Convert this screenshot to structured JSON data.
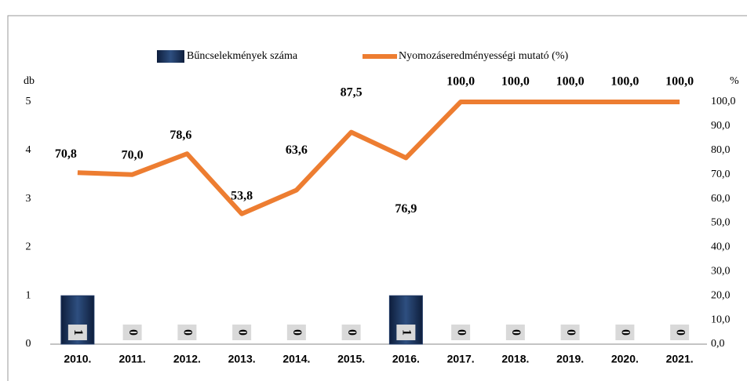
{
  "chart_data": {
    "type": "bar-line",
    "categories": [
      "2010.",
      "2011.",
      "2012.",
      "2013.",
      "2014.",
      "2015.",
      "2016.",
      "2017.",
      "2018.",
      "2019.",
      "2020.",
      "2021."
    ],
    "ylabel": "db",
    "y2label": "%",
    "ylim": [
      0,
      5
    ],
    "yticks": [
      0,
      1,
      2,
      3,
      4,
      5
    ],
    "y2lim": [
      0,
      100
    ],
    "y2ticks": [
      {
        "value": 0,
        "label": "0,0"
      },
      {
        "value": 10,
        "label": "10,0"
      },
      {
        "value": 20,
        "label": "20,0"
      },
      {
        "value": 30,
        "label": "30,0"
      },
      {
        "value": 40,
        "label": "40,0"
      },
      {
        "value": 50,
        "label": "50,0"
      },
      {
        "value": 60,
        "label": "60,0"
      },
      {
        "value": 70,
        "label": "70,0"
      },
      {
        "value": 80,
        "label": "80,0"
      },
      {
        "value": 90,
        "label": "90,0"
      },
      {
        "value": 100,
        "label": "100,0"
      }
    ],
    "series": [
      {
        "name": "Bűncselekmények száma",
        "type": "bar",
        "color": "#1f3864",
        "values": [
          1,
          0,
          0,
          0,
          0,
          0,
          1,
          0,
          0,
          0,
          0,
          0
        ]
      },
      {
        "name": "Nyomozáseredményességi mutató (%)",
        "type": "line",
        "axis": "y2",
        "color": "#ed7d31",
        "values": [
          70.8,
          70.0,
          78.6,
          53.8,
          63.6,
          87.5,
          76.9,
          100,
          100,
          100,
          100,
          100
        ],
        "value_labels": [
          "70,8",
          "70,0",
          "78,6",
          "53,8",
          "63,6",
          "87,5",
          "76,9",
          "100,0",
          "100,0",
          "100,0",
          "100,0",
          "100,0"
        ]
      }
    ]
  }
}
